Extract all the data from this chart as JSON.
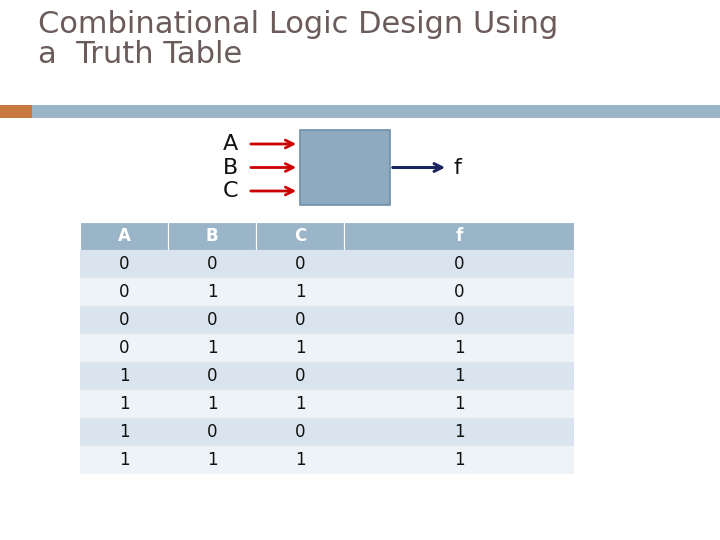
{
  "title_line1": "Combinational Logic Design Using",
  "title_line2": "a  Truth Table",
  "title_color": "#6b5b5b",
  "title_fontsize": 22,
  "bg_color": "#ffffff",
  "header_bar_color": "#9bb5c8",
  "header_bar_left_accent": "#c87941",
  "table_headers": [
    "A",
    "B",
    "C",
    "f"
  ],
  "table_data": [
    [
      0,
      0,
      0,
      0
    ],
    [
      0,
      1,
      1,
      0
    ],
    [
      0,
      0,
      0,
      0
    ],
    [
      0,
      1,
      1,
      1
    ],
    [
      1,
      0,
      0,
      1
    ],
    [
      1,
      1,
      1,
      1
    ],
    [
      1,
      0,
      0,
      1
    ],
    [
      1,
      1,
      1,
      1
    ]
  ],
  "row_color_even": "#d9e4ee",
  "row_color_odd": "#eef3f7",
  "header_row_color": "#9bb5c8",
  "header_text_color": "#ffffff",
  "table_text_color": "#111111",
  "box_fill": "#8fa9be",
  "box_edge": "#7090a8",
  "arrow_input_color": "#cc0000",
  "arrow_output_color": "#1a2560",
  "input_labels": [
    "A",
    "B",
    "C"
  ],
  "output_label": "f",
  "diagram_label_fontsize": 16,
  "table_fontsize": 12,
  "table_header_fontsize": 12
}
